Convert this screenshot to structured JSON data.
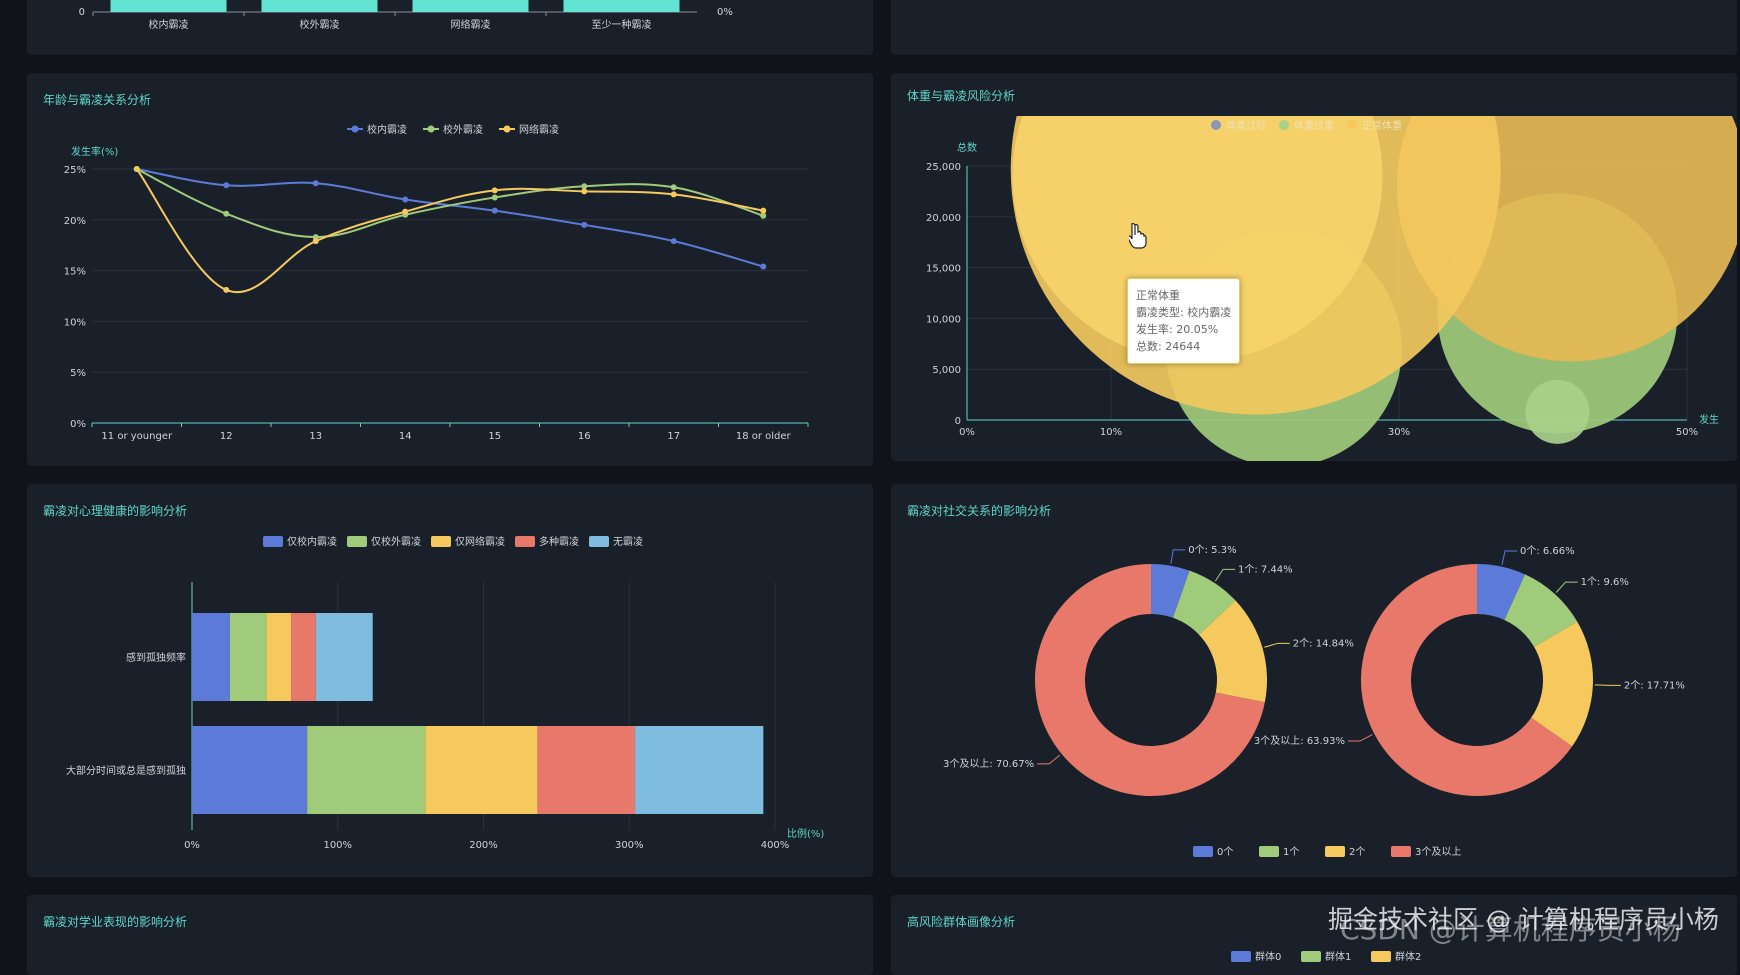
{
  "colors": {
    "blue": "#5c7bd9",
    "green": "#9fcb7a",
    "yellow": "#f5c95d",
    "red": "#e8796a",
    "sky": "#7fbde0",
    "teal": "#62e3d3",
    "accent": "#5ed6c8"
  },
  "panels": {
    "p1": {
      "title": ""
    },
    "p2": {
      "title": ""
    },
    "p3": {
      "title": "年龄与霸凌关系分析"
    },
    "p4": {
      "title": "体重与霸凌风险分析"
    },
    "p5": {
      "title": "霸凌对心理健康的影响分析"
    },
    "p6": {
      "title": "霸凌对社交关系的影响分析"
    },
    "p7": {
      "title": "霸凌对学业表现的影响分析"
    },
    "p8": {
      "title": "高风险群体画像分析"
    }
  },
  "tooltip": {
    "line1": "正常体重",
    "line2": "霸凌类型: 校内霸凌",
    "line3": "发生率: 20.05%",
    "line4": "总数: 24644"
  },
  "watermark": {
    "line1": "掘金技术社区 @ 计算机程序员小杨",
    "line2": "CSDN @计算机程序员小杨"
  },
  "chart_data": [
    {
      "type": "bar",
      "categories": [
        "校内霸凌",
        "校外霸凌",
        "网络霸凌",
        "至少一种霸凌"
      ],
      "y_left_ticks": [
        "0"
      ],
      "y_right_ticks": [
        "0%"
      ]
    },
    {
      "type": "line",
      "x": [
        "11 or younger",
        "12",
        "13",
        "14",
        "15",
        "16",
        "17",
        "18 or older"
      ],
      "ylabel": "发生率(%)",
      "ylim": [
        0,
        25
      ],
      "yticks": [
        "0%",
        "5%",
        "10%",
        "15%",
        "20%",
        "25%"
      ],
      "series": [
        {
          "name": "校内霸凌",
          "color": "#5c7bd9",
          "values": [
            25,
            23.4,
            23.6,
            22,
            20.9,
            19.5,
            17.9,
            15.4
          ]
        },
        {
          "name": "校外霸凌",
          "color": "#9fcb7a",
          "values": [
            25,
            20.6,
            18.3,
            20.5,
            22.2,
            23.3,
            23.2,
            20.4
          ]
        },
        {
          "name": "网络霸凌",
          "color": "#f5c95d",
          "values": [
            25,
            13.1,
            17.9,
            20.8,
            22.9,
            22.8,
            22.5,
            20.9
          ]
        }
      ]
    },
    {
      "type": "scatter",
      "ylabel": "总数",
      "xlabel": "发生",
      "xlim": [
        0,
        50
      ],
      "ylim": [
        0,
        25000
      ],
      "xticks": [
        "0%",
        "10%",
        "30%",
        "50%"
      ],
      "yticks": [
        "0",
        "5,000",
        "10,000",
        "15,000",
        "20,000",
        "25,000"
      ],
      "legend": [
        "体重过轻",
        "体重过重",
        "正常体重"
      ],
      "bubbles": [
        {
          "series": "正常体重",
          "x": 20.05,
          "y": 24644,
          "r": 245,
          "color": "#f2c85e"
        },
        {
          "series": "正常体重",
          "x": 16,
          "y": 24000,
          "r": 185,
          "color": "#f7d26a"
        },
        {
          "series": "体重过重",
          "x": 22,
          "y": 7000,
          "r": 118,
          "color": "#9fcb7a"
        },
        {
          "series": "体重过重",
          "x": 41,
          "y": 10500,
          "r": 120,
          "color": "#9fcb7a"
        },
        {
          "series": "正常体重",
          "x": 42,
          "y": 23000,
          "r": 175,
          "color": "#e6b955"
        },
        {
          "series": "体重过轻",
          "x": 41,
          "y": 800,
          "r": 32,
          "color": "#a8d08a"
        }
      ]
    },
    {
      "type": "bar",
      "orientation": "horizontal",
      "stacked": true,
      "categories": [
        "感到孤独频率",
        "大部分时间或总是感到孤独"
      ],
      "xlabel": "比例(%)",
      "xlim": [
        0,
        400
      ],
      "xticks": [
        "0%",
        "100%",
        "200%",
        "300%",
        "400%"
      ],
      "series": [
        {
          "name": "仅校内霸凌",
          "color": "#5c7bd9",
          "values": [
            26,
            79
          ]
        },
        {
          "name": "仅校外霸凌",
          "color": "#9fcb7a",
          "values": [
            25,
            81
          ]
        },
        {
          "name": "仅网络霸凌",
          "color": "#f5c95d",
          "values": [
            17,
            77
          ]
        },
        {
          "name": "多种霸凌",
          "color": "#e8796a",
          "values": [
            17,
            67
          ]
        },
        {
          "name": "无霸凌",
          "color": "#7fbde0",
          "values": [
            39,
            88
          ]
        }
      ]
    },
    {
      "type": "pie",
      "legend": [
        "0个",
        "1个",
        "2个",
        "3个及以上"
      ],
      "pies": [
        {
          "slices": [
            {
              "name": "0个",
              "value": 5.3,
              "label": "0个: 5.3%"
            },
            {
              "name": "1个",
              "value": 7.44,
              "label": "1个: 7.44%"
            },
            {
              "name": "2个",
              "value": 14.84,
              "label": "2个: 14.84%"
            },
            {
              "name": "3个及以上",
              "value": 70.67,
              "label": "3个及以上: 70.67%"
            }
          ]
        },
        {
          "slices": [
            {
              "name": "0个",
              "value": 6.66,
              "label": "0个: 6.66%"
            },
            {
              "name": "1个",
              "value": 9.6,
              "label": "1个: 9.6%"
            },
            {
              "name": "2个",
              "value": 17.71,
              "label": "2个: 17.71%"
            },
            {
              "name": "3个及以上",
              "value": 63.93,
              "label": "3个及以上: 63.93%"
            }
          ]
        }
      ]
    },
    {
      "type": "bar",
      "legend": [
        "群体0",
        "群体1",
        "群体2"
      ]
    }
  ]
}
